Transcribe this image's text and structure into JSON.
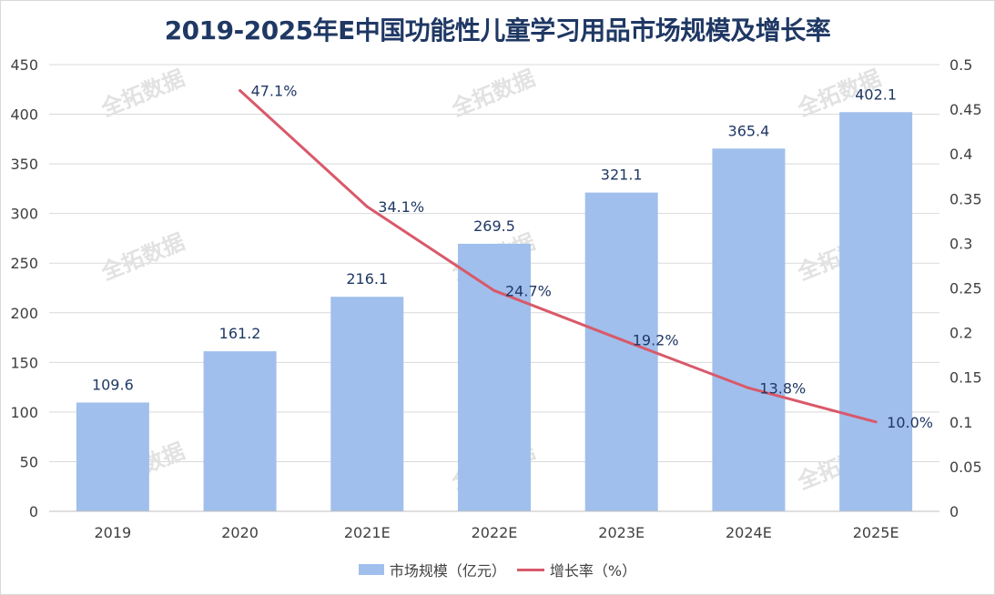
{
  "chart_data": {
    "type": "bar",
    "title": "2019-2025年E中国功能性儿童学习用品市场规模及增长率",
    "categories": [
      "2019",
      "2020",
      "2021E",
      "2022E",
      "2023E",
      "2024E",
      "2025E"
    ],
    "series": [
      {
        "name": "市场规模（亿元）",
        "type": "bar",
        "axis": "left",
        "values": [
          109.6,
          161.2,
          216.1,
          269.5,
          321.1,
          365.4,
          402.1
        ],
        "labels": [
          "109.6",
          "161.2",
          "216.1",
          "269.5",
          "321.1",
          "365.4",
          "402.1"
        ]
      },
      {
        "name": "增长率（%）",
        "type": "line",
        "axis": "right",
        "values": [
          null,
          0.471,
          0.341,
          0.247,
          0.192,
          0.138,
          0.1
        ],
        "labels": [
          "",
          "47.1%",
          "34.1%",
          "24.7%",
          "19.2%",
          "13.8%",
          "10.0%"
        ]
      }
    ],
    "y_left": {
      "min": 0,
      "max": 450,
      "ticks": [
        "0",
        "50",
        "100",
        "150",
        "200",
        "250",
        "300",
        "350",
        "400",
        "450"
      ]
    },
    "y_right": {
      "min": 0,
      "max": 0.5,
      "ticks": [
        "0",
        "0.05",
        "0.1",
        "0.15",
        "0.2",
        "0.25",
        "0.3",
        "0.35",
        "0.4",
        "0.45",
        "0.5"
      ]
    },
    "grid": true,
    "legend_position": "bottom",
    "colors": {
      "bar": "#a0bfec",
      "line": "#d9596a",
      "title": "#1f3864",
      "gridline": "#d9d9d9"
    },
    "watermark": "全拓数据"
  }
}
